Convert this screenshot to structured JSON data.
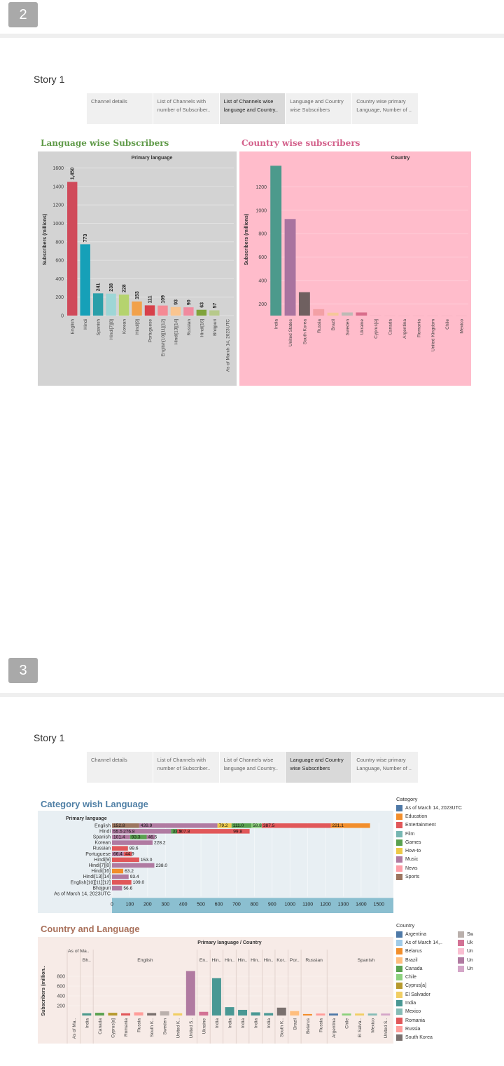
{
  "pages": [
    {
      "number": "2",
      "story_title": "Story 1",
      "tabs": [
        {
          "label": "Channel details"
        },
        {
          "label": "List of Channels with number of Subscriber.."
        },
        {
          "label": "List of Channels wise language and Country.."
        },
        {
          "label": "Language and Country wise Subscribers"
        },
        {
          "label": "Country wise primary Language, Number of .."
        }
      ],
      "active_tab": 2
    },
    {
      "number": "3",
      "story_title": "Story 1",
      "tabs": [
        {
          "label": "Channel details"
        },
        {
          "label": "List of Channels with number of Subscriber.."
        },
        {
          "label": "List of Channels wise language and Country.."
        },
        {
          "label": "Language and Country wise Subscribers"
        },
        {
          "label": "Country wise primary Language, Number of .."
        }
      ],
      "active_tab": 3
    }
  ],
  "colors": {
    "lang_panel_bg": "#d3d3d3",
    "country_panel_bg": "#ffbccb",
    "category_panel_bg": "#e8eff3",
    "country_lang_panel_bg": "#f7ebe7",
    "lang_title": "#5f9a48",
    "country_title": "#d35f8a",
    "category_title": "#4f7fa5",
    "country_lang_title": "#a9705a",
    "axis_band": "#8bbfd0"
  },
  "chart_data": [
    {
      "type": "bar",
      "title": "Language wise Subscribers",
      "header": "Primary language",
      "ylabel": "Subscribers (millions)",
      "ylim": [
        0,
        1650
      ],
      "yticks": [
        0,
        200,
        400,
        600,
        800,
        1000,
        1200,
        1400,
        1600
      ],
      "categories": [
        "English",
        "Hindi",
        "Spanish",
        "Hindi[7][8]",
        "Korean",
        "Hindi[9]",
        "Portuguese",
        "English[10][11][12]",
        "Hindi[13][14]",
        "Russian",
        "Hindi[16]",
        "Bhojpuri",
        "As of March 14, 2023UTC"
      ],
      "values": [
        1450,
        773,
        241,
        238,
        228,
        153,
        111,
        109,
        93,
        90,
        63,
        57,
        null
      ],
      "data_labels": [
        "1,450",
        "773",
        "241",
        "238",
        "228",
        "153",
        "111",
        "109",
        "93",
        "90",
        "63",
        "57",
        ""
      ],
      "colors": [
        "#d04a5a",
        "#16a0b8",
        "#2a9fa9",
        "#9ed6d6",
        "#b5d36e",
        "#f2a14a",
        "#d7404a",
        "#f58a94",
        "#fac58f",
        "#f08a9e",
        "#7fa33a",
        "#b7c98a",
        "#ffffff"
      ]
    },
    {
      "type": "bar",
      "title": "Country wise subscribers",
      "header": "Country",
      "ylabel": "Subscribers (millions)",
      "ylim": [
        100,
        1400
      ],
      "yticks": [
        200,
        400,
        600,
        800,
        1000,
        1200
      ],
      "categories": [
        "India",
        "United States",
        "South Korea",
        "Russia",
        "Brazil",
        "Sweden",
        "Ukraine",
        "Cyprus[a]",
        "Canada",
        "Argentina",
        "Romania",
        "United Kingdom",
        "Chile",
        "Mexico"
      ],
      "values": [
        1380,
        925,
        300,
        155,
        125,
        127,
        127,
        103,
        100,
        100,
        100,
        100,
        100,
        100
      ],
      "colors": [
        "#4c9a8c",
        "#a9739f",
        "#6f6060",
        "#f3a0a5",
        "#f6c79a",
        "#bdbab5",
        "#d96d8b",
        "#f4b0c0",
        "#f4b0c0",
        "#f4b0c0",
        "#f4b0c0",
        "#f4b0c0",
        "#f4b0c0",
        "#f4b0c0"
      ]
    },
    {
      "type": "bar",
      "orientation": "horizontal",
      "stacked": true,
      "title": "Category wish Language",
      "header": "Primary language",
      "xlim": [
        0,
        1550
      ],
      "xticks": [
        0,
        100,
        200,
        300,
        400,
        500,
        600,
        700,
        800,
        900,
        1000,
        1100,
        1200,
        1300,
        1400,
        1500
      ],
      "categories": [
        "English",
        "Hindi",
        "Spanish",
        "Korean",
        "Russian",
        "Portuguese",
        "Hindi[9]",
        "Hindi[7][8]",
        "Hindi[16]",
        "Hindi[13][14]",
        "English[10][11][12]",
        "Bhojpuri",
        "As of March 14, 2023UTC"
      ],
      "rows": [
        [
          {
            "c": "Sports",
            "v": 152.8,
            "label": "152.8"
          },
          {
            "c": "Music",
            "v": 439.9,
            "label": "439.9"
          },
          {
            "c": "How-to",
            "v": 79.2,
            "label": "79.2"
          },
          {
            "c": "Games",
            "v": 111.0,
            "label": "111.0"
          },
          {
            "c": "Chile",
            "v": 58.8,
            "label": "58.8"
          },
          {
            "c": "Entertainment",
            "v": 387.5,
            "label": "387.5"
          },
          {
            "c": "Education",
            "v": 221.1,
            "label": "221.1"
          }
        ],
        [
          {
            "c": "Music",
            "v": 55.5,
            "label": "55.5"
          },
          {
            "c": "Music",
            "v": 276.8,
            "label": "276.8"
          },
          {
            "c": "Games",
            "v": 33.5,
            "label": "33.5"
          },
          {
            "c": "Entertainment",
            "v": 307.8,
            "label": "307.8"
          },
          {
            "c": "Entertainment",
            "v": 99.8,
            "label": "99.8"
          }
        ],
        [
          {
            "c": "Music",
            "v": 101.4,
            "label": "101.4"
          },
          {
            "c": "Games",
            "v": 93.3,
            "label": "93.3"
          },
          {
            "c": "Music",
            "v": 46.5,
            "label": "46.5"
          }
        ],
        [
          {
            "c": "Music",
            "v": 228.2,
            "label": "228.2"
          }
        ],
        [
          {
            "c": "Entertainment",
            "v": 89.6,
            "label": "89.6"
          }
        ],
        [
          {
            "c": "Music",
            "v": 66.4,
            "label": "66.4"
          },
          {
            "c": "Entertainment",
            "v": 44.9,
            "label": "44.9"
          }
        ],
        [
          {
            "c": "Entertainment",
            "v": 153.0,
            "label": "153.0"
          }
        ],
        [
          {
            "c": "Music",
            "v": 238.0,
            "label": "238.0"
          }
        ],
        [
          {
            "c": "Education",
            "v": 63.2,
            "label": "63.2"
          }
        ],
        [
          {
            "c": "Music",
            "v": 93.4,
            "label": "93.4"
          }
        ],
        [
          {
            "c": "Entertainment",
            "v": 109.0,
            "label": "109.0"
          }
        ],
        [
          {
            "c": "Music",
            "v": 56.6,
            "label": "56.6"
          }
        ],
        []
      ]
    },
    {
      "type": "bar",
      "title": "Country and Language",
      "header": "Primary language / Country",
      "ylabel": "Subscribers (million..",
      "ylim": [
        0,
        1000
      ],
      "yticks": [
        200,
        400,
        600,
        800
      ],
      "groups": [
        {
          "label": "As of Ma..",
          "span": 1
        },
        {
          "label": "Bh..",
          "span": 1
        },
        {
          "label": "English",
          "span": 8
        },
        {
          "label": "En..",
          "span": 1
        },
        {
          "label": "Hin..",
          "span": 1
        },
        {
          "label": "Hin..",
          "span": 1
        },
        {
          "label": "Hin..",
          "span": 1
        },
        {
          "label": "Hin..",
          "span": 1
        },
        {
          "label": "Hin..",
          "span": 1
        },
        {
          "label": "Kor..",
          "span": 1
        },
        {
          "label": "Por..",
          "span": 1
        },
        {
          "label": "Russian",
          "span": 2
        },
        {
          "label": "Spanish",
          "span": 6
        }
      ],
      "categories": [
        "As of Ma..",
        "India",
        "Canada",
        "Cyprus[a]",
        "Romania",
        "Russia",
        "South K..",
        "Sweden",
        "United K..",
        "United S..",
        "Ukraine",
        "India",
        "India",
        "India",
        "India",
        "India",
        "South K..",
        "Brazil",
        "Belarus",
        "Russia",
        "Argentina",
        "Chile",
        "El Salva..",
        "Mexico",
        "United S.."
      ],
      "values": [
        0,
        45,
        55,
        55,
        45,
        65,
        50,
        85,
        45,
        905,
        75,
        760,
        170,
        115,
        65,
        50,
        160,
        90,
        30,
        40,
        40,
        40,
        40,
        40,
        40
      ],
      "bar_colors": [
        "#ffffff",
        "#4c9a8c",
        "#59a14f",
        "#b6992d",
        "#e15759",
        "#ff9d9a",
        "#79706e",
        "#bab0ac",
        "#f1ce63",
        "#b07aa1",
        "#d37295",
        "#499894",
        "#499894",
        "#499894",
        "#499894",
        "#499894",
        "#79706e",
        "#ffbe7d",
        "#f28e2b",
        "#ff9d9a",
        "#4e79a7",
        "#8cd17d",
        "#f1ce63",
        "#86bcb6",
        "#d4a6c8"
      ]
    }
  ],
  "category_legend": {
    "title": "Category",
    "items": [
      {
        "label": "As of March 14, 2023UTC",
        "color": "#4e79a7"
      },
      {
        "label": "Education",
        "color": "#f28e2b"
      },
      {
        "label": "Entertainment",
        "color": "#e15759"
      },
      {
        "label": "Film",
        "color": "#76b7b2"
      },
      {
        "label": "Games",
        "color": "#59a14f"
      },
      {
        "label": "How-to",
        "color": "#edc948"
      },
      {
        "label": "Music",
        "color": "#b07aa1"
      },
      {
        "label": "News",
        "color": "#ff9da7"
      },
      {
        "label": "Sports",
        "color": "#9c755f"
      }
    ]
  },
  "country_legend": {
    "title": "Country",
    "items": [
      {
        "label": "Argentina",
        "color": "#4e79a7"
      },
      {
        "label": "As of March 14,..",
        "color": "#a0cbe8"
      },
      {
        "label": "Belarus",
        "color": "#f28e2b"
      },
      {
        "label": "Brazil",
        "color": "#ffbe7d"
      },
      {
        "label": "Canada",
        "color": "#59a14f"
      },
      {
        "label": "Chile",
        "color": "#8cd17d"
      },
      {
        "label": "Cyprus[a]",
        "color": "#b6992d"
      },
      {
        "label": "El Salvador",
        "color": "#f1ce63"
      },
      {
        "label": "India",
        "color": "#499894"
      },
      {
        "label": "Mexico",
        "color": "#86bcb6"
      },
      {
        "label": "Romania",
        "color": "#e15759"
      },
      {
        "label": "Russia",
        "color": "#ff9d9a"
      },
      {
        "label": "South Korea",
        "color": "#79706e"
      }
    ],
    "items2": [
      {
        "label": "Swec",
        "color": "#bab0ac"
      },
      {
        "label": "Ukrai",
        "color": "#d37295"
      },
      {
        "label": "Unite",
        "color": "#fabfd2"
      },
      {
        "label": "Unite",
        "color": "#b07aa1"
      },
      {
        "label": "Unite",
        "color": "#d4a6c8"
      }
    ]
  }
}
